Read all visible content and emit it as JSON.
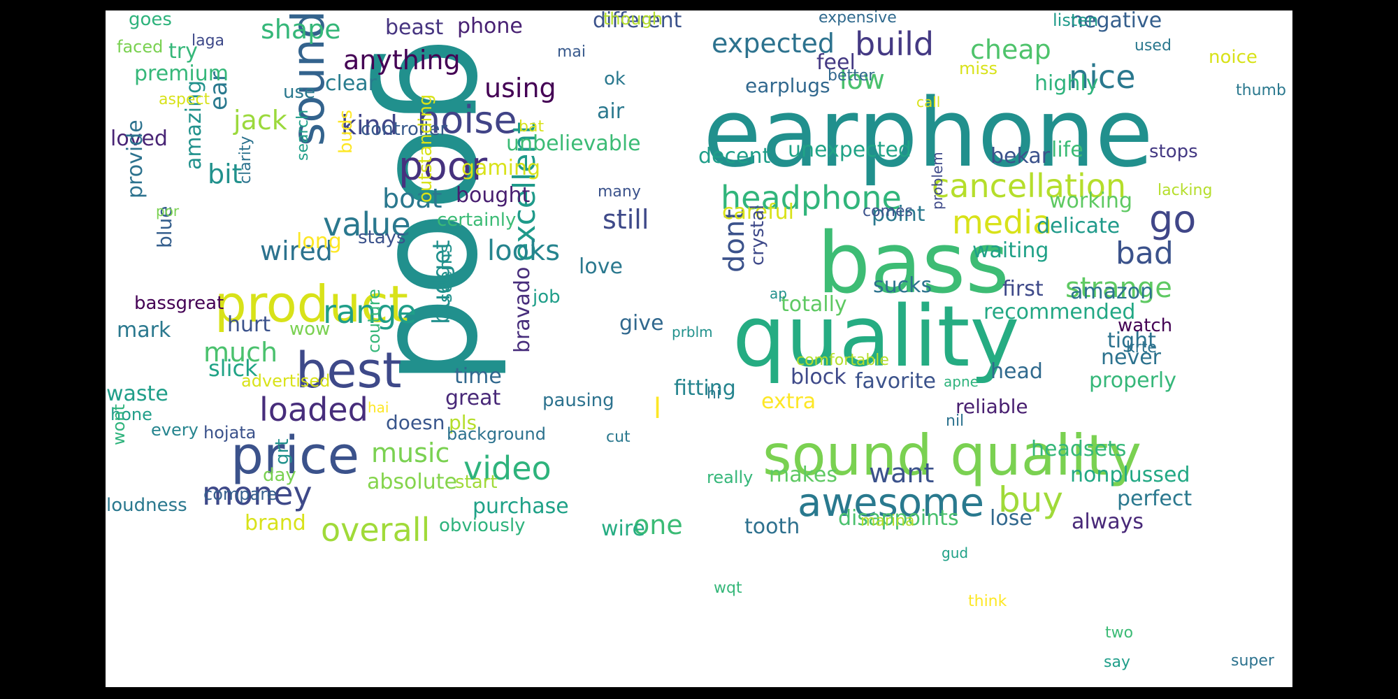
{
  "words": [
    {
      "text": "good",
      "color": "#21908d"
    },
    {
      "text": "earphone",
      "color": "#21908d"
    },
    {
      "text": "bass",
      "color": "#3dbc74"
    },
    {
      "text": "quality",
      "color": "#25ac82"
    },
    {
      "text": "sound quality",
      "color": "#7ad151"
    },
    {
      "text": "product",
      "color": "#d8e219"
    },
    {
      "text": "price",
      "color": "#3b528b"
    },
    {
      "text": "best",
      "color": "#3e4989"
    },
    {
      "text": "sound",
      "color": "#33638d"
    },
    {
      "text": "awesome",
      "color": "#29798e"
    },
    {
      "text": "noise",
      "color": "#414487"
    },
    {
      "text": "poor",
      "color": "#46327e"
    },
    {
      "text": "cancellation",
      "color": "#b5de2b"
    },
    {
      "text": "headphone",
      "color": "#31b57b"
    },
    {
      "text": "nice",
      "color": "#2a788e"
    },
    {
      "text": "build",
      "color": "#443983"
    },
    {
      "text": "go",
      "color": "#404688"
    },
    {
      "text": "overall",
      "color": "#a0da39"
    },
    {
      "text": "buy",
      "color": "#a0da39"
    },
    {
      "text": "money",
      "color": "#3e4989"
    },
    {
      "text": "loaded",
      "color": "#472d7b"
    },
    {
      "text": "value",
      "color": "#2a788e"
    },
    {
      "text": "range",
      "color": "#1f9e89"
    },
    {
      "text": "video",
      "color": "#2eb37c"
    },
    {
      "text": "media",
      "color": "#d8e219"
    },
    {
      "text": "excellent",
      "color": "#1f9a8a"
    },
    {
      "text": "anything",
      "color": "#440154"
    },
    {
      "text": "expected",
      "color": "#2c728e"
    },
    {
      "text": "cheap",
      "color": "#4ec36b"
    },
    {
      "text": "shape",
      "color": "#35b779"
    },
    {
      "text": "bad",
      "color": "#3b528b"
    },
    {
      "text": "strange",
      "color": "#5ec962"
    },
    {
      "text": "much",
      "color": "#4ac16d"
    },
    {
      "text": "music",
      "color": "#7ad151"
    },
    {
      "text": "want",
      "color": "#3b528b"
    },
    {
      "text": "looks",
      "color": "#25848e"
    },
    {
      "text": "boat",
      "color": "#2a788e"
    },
    {
      "text": "using",
      "color": "#440154"
    },
    {
      "text": "kind",
      "color": "#404688"
    },
    {
      "text": "jack",
      "color": "#9bd93c"
    },
    {
      "text": "bit",
      "color": "#21918c"
    },
    {
      "text": "wired",
      "color": "#2c728e"
    },
    {
      "text": "dont",
      "color": "#3b528b"
    },
    {
      "text": "low",
      "color": "#4ac16d"
    },
    {
      "text": "budget",
      "color": "#21908d"
    },
    {
      "text": "still",
      "color": "#3e4989"
    },
    {
      "text": "one",
      "color": "#3bbb75"
    },
    {
      "text": "ear",
      "color": "#29798e"
    },
    {
      "text": "beast",
      "color": "#463480"
    },
    {
      "text": "phone",
      "color": "#482173"
    },
    {
      "text": "different",
      "color": "#3b528b"
    },
    {
      "text": "negative",
      "color": "#355f8d"
    },
    {
      "text": "slick",
      "color": "#20a386"
    },
    {
      "text": "brand",
      "color": "#d8e219"
    },
    {
      "text": "absolute",
      "color": "#84d44b"
    },
    {
      "text": "tooth",
      "color": "#2d708e"
    },
    {
      "text": "disappoints",
      "color": "#4ac16d"
    },
    {
      "text": "always",
      "color": "#482878"
    },
    {
      "text": "lose",
      "color": "#31688e"
    },
    {
      "text": "perfect",
      "color": "#2a788e"
    },
    {
      "text": "nonplussed",
      "color": "#22a884"
    },
    {
      "text": "headsets",
      "color": "#35b779"
    },
    {
      "text": "purchase",
      "color": "#1fa187"
    },
    {
      "text": "wire",
      "color": "#25ac82"
    },
    {
      "text": "makes",
      "color": "#5ec962"
    },
    {
      "text": "extra",
      "color": "#fde725"
    },
    {
      "text": "fitting",
      "color": "#25848e"
    },
    {
      "text": "favorite",
      "color": "#3b528b"
    },
    {
      "text": "block",
      "color": "#3e4989"
    },
    {
      "text": "head",
      "color": "#306a8e"
    },
    {
      "text": "never",
      "color": "#2c728e"
    },
    {
      "text": "properly",
      "color": "#35b779"
    },
    {
      "text": "reliable",
      "color": "#481f70"
    },
    {
      "text": "great",
      "color": "#482878"
    },
    {
      "text": "pls",
      "color": "#b5de2b"
    },
    {
      "text": "doesn",
      "color": "#39568c"
    },
    {
      "text": "time",
      "color": "#31688e"
    },
    {
      "text": "give",
      "color": "#31688e"
    },
    {
      "text": "love",
      "color": "#2a788e"
    },
    {
      "text": "job",
      "color": "#1f9e89"
    },
    {
      "text": "first",
      "color": "#3e4989"
    },
    {
      "text": "amazon",
      "color": "#2c728e"
    },
    {
      "text": "recommended",
      "color": "#22a884"
    },
    {
      "text": "watch",
      "color": "#440154"
    },
    {
      "text": "tight",
      "color": "#2c728e"
    },
    {
      "text": "totally",
      "color": "#5ec962"
    },
    {
      "text": "sucks",
      "color": "#2c728e"
    },
    {
      "text": "waiting",
      "color": "#1fa187"
    },
    {
      "text": "delicate",
      "color": "#1f9a8a"
    },
    {
      "text": "working",
      "color": "#5ec962"
    },
    {
      "text": "point",
      "color": "#2a788e"
    },
    {
      "text": "careful",
      "color": "#d8e219"
    },
    {
      "text": "decent",
      "color": "#1f9e89"
    },
    {
      "text": "unexpected",
      "color": "#20a386"
    },
    {
      "text": "bekar",
      "color": "#3b528b"
    },
    {
      "text": "life",
      "color": "#3bbb75"
    },
    {
      "text": "stops",
      "color": "#443983"
    },
    {
      "text": "highly",
      "color": "#2eb37c"
    },
    {
      "text": "feel",
      "color": "#443983"
    },
    {
      "text": "earplugs",
      "color": "#31688e"
    },
    {
      "text": "unbelievable",
      "color": "#3bbb75"
    },
    {
      "text": "gaming",
      "color": "#d8e219"
    },
    {
      "text": "bought",
      "color": "#481f70"
    },
    {
      "text": "certainly",
      "color": "#3bbb75"
    },
    {
      "text": "controller",
      "color": "#38598c"
    },
    {
      "text": "clear",
      "color": "#287c8e"
    },
    {
      "text": "premium",
      "color": "#35b779"
    },
    {
      "text": "try",
      "color": "#35b779"
    },
    {
      "text": "use",
      "color": "#2a788e"
    },
    {
      "text": "loved",
      "color": "#482475"
    },
    {
      "text": "amazing",
      "color": "#21918c"
    },
    {
      "text": "provide",
      "color": "#2c728e"
    },
    {
      "text": "blue",
      "color": "#355f8d"
    },
    {
      "text": "mark",
      "color": "#2a788e"
    },
    {
      "text": "bassgreat",
      "color": "#440154"
    },
    {
      "text": "hurt",
      "color": "#3b528b"
    },
    {
      "text": "wow",
      "color": "#7ad151"
    },
    {
      "text": "waste",
      "color": "#1f9e89"
    },
    {
      "text": "hone",
      "color": "#1f9e89"
    },
    {
      "text": "every",
      "color": "#25848e"
    },
    {
      "text": "wont",
      "color": "#2eb37c"
    },
    {
      "text": "loudness",
      "color": "#2a788e"
    },
    {
      "text": "compare",
      "color": "#355f8d"
    },
    {
      "text": "hojata",
      "color": "#3b528b"
    },
    {
      "text": "grt",
      "color": "#21918c"
    },
    {
      "text": "day",
      "color": "#7ad151"
    },
    {
      "text": "start",
      "color": "#a0da39"
    },
    {
      "text": "obviously",
      "color": "#2eb37c"
    },
    {
      "text": "background",
      "color": "#2c728e"
    },
    {
      "text": "pausing",
      "color": "#2c728e"
    },
    {
      "text": "advertised",
      "color": "#d8e219"
    },
    {
      "text": "hai",
      "color": "#fde725"
    },
    {
      "text": "couture",
      "color": "#35b779"
    },
    {
      "text": "bravado",
      "color": "#472d7b"
    },
    {
      "text": "seems",
      "color": "#21918c"
    },
    {
      "text": "outstanding",
      "color": "#d8e219"
    },
    {
      "text": "stays",
      "color": "#3b528b"
    },
    {
      "text": "long",
      "color": "#fde725"
    },
    {
      "text": "crystal",
      "color": "#3e4989"
    },
    {
      "text": "air",
      "color": "#2a788e"
    },
    {
      "text": "ok",
      "color": "#2a788e"
    },
    {
      "text": "many",
      "color": "#3b528b"
    },
    {
      "text": "cut",
      "color": "#2a788e"
    },
    {
      "text": "hi",
      "color": "#2a788e"
    },
    {
      "text": "ap",
      "color": "#21918c"
    },
    {
      "text": "prblm",
      "color": "#21918c"
    },
    {
      "text": "comfortable",
      "color": "#b5de2b"
    },
    {
      "text": "apne",
      "color": "#2eb37c"
    },
    {
      "text": "nil",
      "color": "#2c728e"
    },
    {
      "text": "really",
      "color": "#35b779"
    },
    {
      "text": "marina",
      "color": "#b5de2b"
    },
    {
      "text": "gud",
      "color": "#1fa187"
    },
    {
      "text": "wqt",
      "color": "#35b779"
    },
    {
      "text": "think",
      "color": "#fde725"
    },
    {
      "text": "two",
      "color": "#3bbb75"
    },
    {
      "text": "say",
      "color": "#1f9e89"
    },
    {
      "text": "super",
      "color": "#2c728e"
    },
    {
      "text": "krte",
      "color": "#2c728e"
    },
    {
      "text": "problem",
      "color": "#3e4989"
    },
    {
      "text": "comes",
      "color": "#3b528b"
    },
    {
      "text": "lacking",
      "color": "#b5de2b"
    },
    {
      "text": "thumb",
      "color": "#2a788e"
    },
    {
      "text": "listen",
      "color": "#1f9a8a"
    },
    {
      "text": "used",
      "color": "#2a788e"
    },
    {
      "text": "noice",
      "color": "#d8e219"
    },
    {
      "text": "miss",
      "color": "#d8e219"
    },
    {
      "text": "call",
      "color": "#d8e219"
    },
    {
      "text": "better",
      "color": "#31688e"
    },
    {
      "text": "expensive",
      "color": "#306a8e"
    },
    {
      "text": "though",
      "color": "#b5de2b"
    },
    {
      "text": "mai",
      "color": "#38598c"
    },
    {
      "text": "goes",
      "color": "#2eb37c"
    },
    {
      "text": "faced",
      "color": "#7ad151"
    },
    {
      "text": "laga",
      "color": "#3e4989"
    },
    {
      "text": "aspect",
      "color": "#d8e219"
    },
    {
      "text": "bat",
      "color": "#d8e219"
    },
    {
      "text": "search",
      "color": "#1f9e89"
    },
    {
      "text": "buds",
      "color": "#fde725"
    },
    {
      "text": "clarity",
      "color": "#2c728e"
    },
    {
      "text": "por",
      "color": "#7ad151"
    },
    {
      "text": "l",
      "color": "#fde725"
    }
  ]
}
